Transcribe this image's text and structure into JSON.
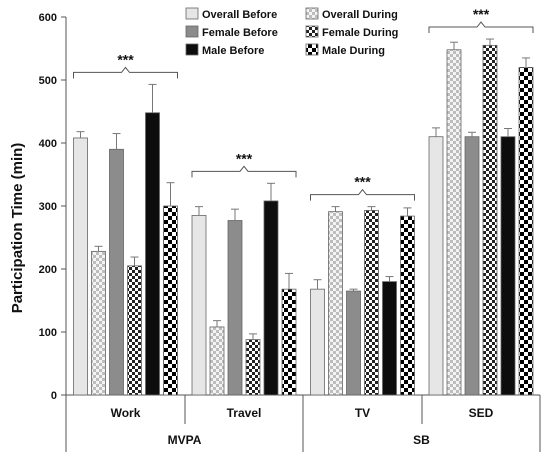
{
  "chart_data": {
    "type": "bar",
    "ylabel": "Participation Time (min)",
    "ylim": [
      0,
      600
    ],
    "yticks": [
      0,
      100,
      200,
      300,
      400,
      500,
      600
    ],
    "grid": false,
    "legend_position": "top-right",
    "categories": [
      "Work",
      "Travel",
      "TV",
      "SED"
    ],
    "groups": [
      {
        "label": "MVPA",
        "categories": [
          "Work",
          "Travel"
        ]
      },
      {
        "label": "SB",
        "categories": [
          "TV",
          "SED"
        ]
      }
    ],
    "series": [
      {
        "name": "Overall Before",
        "pattern": "light-gray",
        "values": [
          408,
          285,
          168,
          410
        ],
        "errors": [
          10,
          14,
          15,
          14
        ]
      },
      {
        "name": "Overall During",
        "pattern": "fine-check",
        "values": [
          228,
          108,
          291,
          548
        ],
        "errors": [
          8,
          10,
          8,
          12
        ]
      },
      {
        "name": "Female Before",
        "pattern": "mid-gray",
        "values": [
          390,
          277,
          165,
          410
        ],
        "errors": [
          25,
          18,
          3,
          7
        ]
      },
      {
        "name": "Female During",
        "pattern": "coarse-check",
        "values": [
          205,
          88,
          293,
          555
        ],
        "errors": [
          14,
          9,
          6,
          10
        ]
      },
      {
        "name": "Male Before",
        "pattern": "black",
        "values": [
          448,
          308,
          180,
          410
        ],
        "errors": [
          45,
          28,
          8,
          13
        ]
      },
      {
        "name": "Male During",
        "pattern": "large-check",
        "values": [
          300,
          168,
          284,
          520
        ],
        "errors": [
          37,
          25,
          13,
          15
        ]
      }
    ],
    "annotations": [
      {
        "text": "***",
        "categories": [
          "Work"
        ]
      },
      {
        "text": "***",
        "categories": [
          "Travel"
        ]
      },
      {
        "text": "***",
        "categories": [
          "TV"
        ]
      },
      {
        "text": "***",
        "categories": [
          "SED"
        ]
      }
    ],
    "colors": {
      "light_gray": "#e6e6e6",
      "mid_gray": "#8c8c8c",
      "black": "#0d0d0d",
      "axis": "#555555"
    }
  }
}
